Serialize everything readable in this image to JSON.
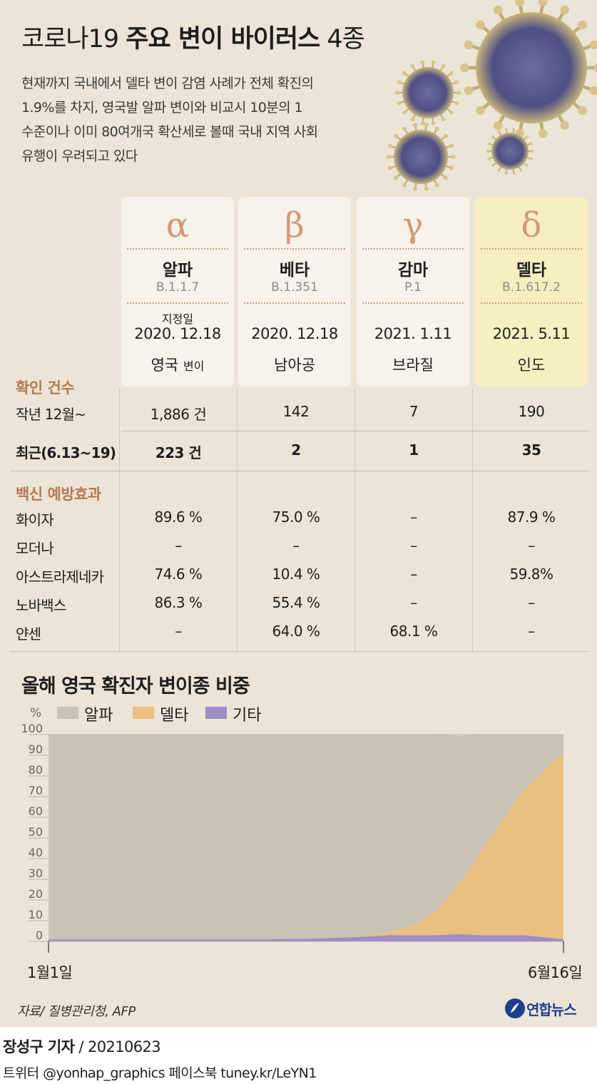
{
  "header": {
    "title_light_1": "코로나19",
    "title_bold": "주요 변이 바이러스",
    "title_light_2": "4종",
    "description": [
      "현재까지 국내에서 델타 변이 감염 사례가 전체 확진의",
      "1.9%를 차지, 영국발 알파 변이와 비교시 10분의 1",
      "수준이나 이미 80여개국 확산세로 볼때 국내 지역 사회",
      "유행이 우려되고 있다"
    ]
  },
  "variants": [
    {
      "symbol": "α",
      "name": "알파",
      "code": "B.1.1.7",
      "date_label": "지정일",
      "date": "2020. 12.18",
      "origin": "영국",
      "origin_suffix": "변이"
    },
    {
      "symbol": "β",
      "name": "베타",
      "code": "B.1.351",
      "date_label": "",
      "date": "2020. 12.18",
      "origin": "남아공",
      "origin_suffix": ""
    },
    {
      "symbol": "γ",
      "name": "감마",
      "code": "P.1",
      "date_label": "",
      "date": "2021. 1.11",
      "origin": "브라질",
      "origin_suffix": ""
    },
    {
      "symbol": "δ",
      "name": "델타",
      "code": "B.1.617.2",
      "date_label": "",
      "date": "2021. 5.11",
      "origin": "인도",
      "origin_suffix": ""
    }
  ],
  "confirmed": {
    "section_label": "확인 건수",
    "rows": [
      {
        "label": "작년 12월~",
        "values": [
          "1,886 건",
          "142",
          "7",
          "190"
        ],
        "bold": false
      },
      {
        "label": "최근(6.13~19)",
        "values": [
          "223 건",
          "2",
          "1",
          "35"
        ],
        "bold": true
      }
    ]
  },
  "vaccine": {
    "section_label": "백신 예방효과",
    "rows": [
      {
        "label": "화이자",
        "values": [
          "89.6 %",
          "75.0 %",
          "–",
          "87.9 %"
        ]
      },
      {
        "label": "모더나",
        "values": [
          "–",
          "–",
          "–",
          "–"
        ]
      },
      {
        "label": "아스트라제네카",
        "values": [
          "74.6 %",
          "10.4 %",
          "–",
          "59.8%"
        ]
      },
      {
        "label": "노바백스",
        "values": [
          "86.3 %",
          "55.4 %",
          "–",
          "–"
        ]
      },
      {
        "label": "얀센",
        "values": [
          "–",
          "64.0 %",
          "68.1 %",
          "–"
        ]
      }
    ]
  },
  "chart_data": {
    "type": "area",
    "title": "올해 영국 확진자 변이종 비중",
    "ylabel": "%",
    "ylim": [
      0,
      100
    ],
    "yticks": [
      0,
      10,
      20,
      30,
      40,
      50,
      60,
      70,
      80,
      90,
      100
    ],
    "x_start_label": "1월1일",
    "x_end_label": "6월16일",
    "x": [
      0,
      14,
      28,
      42,
      56,
      70,
      84,
      98,
      105,
      112,
      119,
      126,
      133,
      140,
      147,
      154,
      161,
      167
    ],
    "series": [
      {
        "name": "알파",
        "color": "#c9c3b5",
        "values": [
          99,
          99,
          99,
          99,
          99,
          99,
          99,
          98,
          97,
          95,
          92,
          85,
          72,
          57,
          42,
          27,
          17,
          9
        ]
      },
      {
        "name": "델타",
        "color": "#ebbf7f",
        "values": [
          0,
          0,
          0,
          0,
          0,
          0,
          0,
          0,
          0.5,
          2,
          5,
          12,
          24,
          40,
          55,
          70,
          81,
          90
        ]
      },
      {
        "name": "기타",
        "color": "#9d8ec4",
        "values": [
          1,
          1,
          1,
          1,
          1,
          1,
          1.3,
          2,
          2.5,
          3,
          3,
          3,
          3.5,
          3,
          3,
          3,
          2,
          1
        ]
      }
    ],
    "legend_position": "top-left"
  },
  "footer": {
    "source": "자료/ 질병관리청, AFP",
    "logo_text": "연합뉴스",
    "byline_name": "장성구 기자",
    "byline_rest": " / 20210623",
    "social": "트위터 @yonhap_graphics  페이스북 tuney.kr/LeYN1"
  }
}
